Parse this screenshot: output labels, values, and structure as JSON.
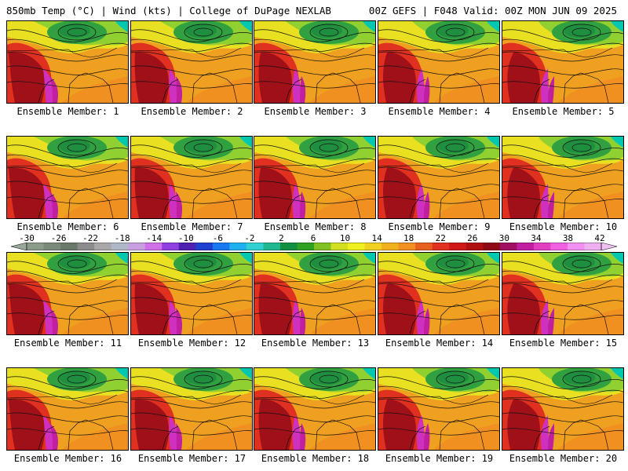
{
  "header": {
    "left": "850mb Temp (°C) | Wind (kts) | College of DuPage NEXLAB",
    "right": "00Z GEFS | F048 Valid: 00Z MON JUN 09 2025"
  },
  "label_prefix": "Ensemble Member: ",
  "members": [
    {
      "label": "Ensemble Member: 1"
    },
    {
      "label": "Ensemble Member: 2"
    },
    {
      "label": "Ensemble Member: 3"
    },
    {
      "label": "Ensemble Member: 4"
    },
    {
      "label": "Ensemble Member: 5"
    },
    {
      "label": "Ensemble Member: 6"
    },
    {
      "label": "Ensemble Member: 7"
    },
    {
      "label": "Ensemble Member: 8"
    },
    {
      "label": "Ensemble Member: 9"
    },
    {
      "label": "Ensemble Member: 10"
    },
    {
      "label": "Ensemble Member: 11"
    },
    {
      "label": "Ensemble Member: 12"
    },
    {
      "label": "Ensemble Member: 13"
    },
    {
      "label": "Ensemble Member: 14"
    },
    {
      "label": "Ensemble Member: 15"
    },
    {
      "label": "Ensemble Member: 16"
    },
    {
      "label": "Ensemble Member: 17"
    },
    {
      "label": "Ensemble Member: 18"
    },
    {
      "label": "Ensemble Member: 19"
    },
    {
      "label": "Ensemble Member: 20"
    }
  ],
  "colorbar": {
    "tick_labels": [
      "-30",
      "-26",
      "-22",
      "-18",
      "-14",
      "-10",
      "-6",
      "-2",
      "2",
      "6",
      "10",
      "14",
      "18",
      "22",
      "26",
      "30",
      "34",
      "38",
      "42"
    ],
    "colors": [
      "#8a9b8a",
      "#7a8a7a",
      "#6a7a6a",
      "#8c8c8c",
      "#a8a8a8",
      "#b0b8c8",
      "#c8a0e0",
      "#d070e8",
      "#9040e0",
      "#5020b0",
      "#2040d0",
      "#1878f0",
      "#20b0f0",
      "#30d0d0",
      "#20b890",
      "#109040",
      "#30a020",
      "#80c020",
      "#d0e020",
      "#f0f020",
      "#f0d020",
      "#f0b020",
      "#f09020",
      "#e86020",
      "#e03020",
      "#d01818",
      "#b01010",
      "#900818",
      "#a01060",
      "#c020a0",
      "#e040c0",
      "#f060e0",
      "#f090f0",
      "#f0b0f0"
    ],
    "field_colors": {
      "cold_teal": "#00c8b0",
      "green": "#30a040",
      "lime": "#90d030",
      "yellow": "#e8e020",
      "orange": "#f0a020",
      "red": "#e03020",
      "darkred": "#a01018",
      "magenta": "#d030c0"
    }
  }
}
